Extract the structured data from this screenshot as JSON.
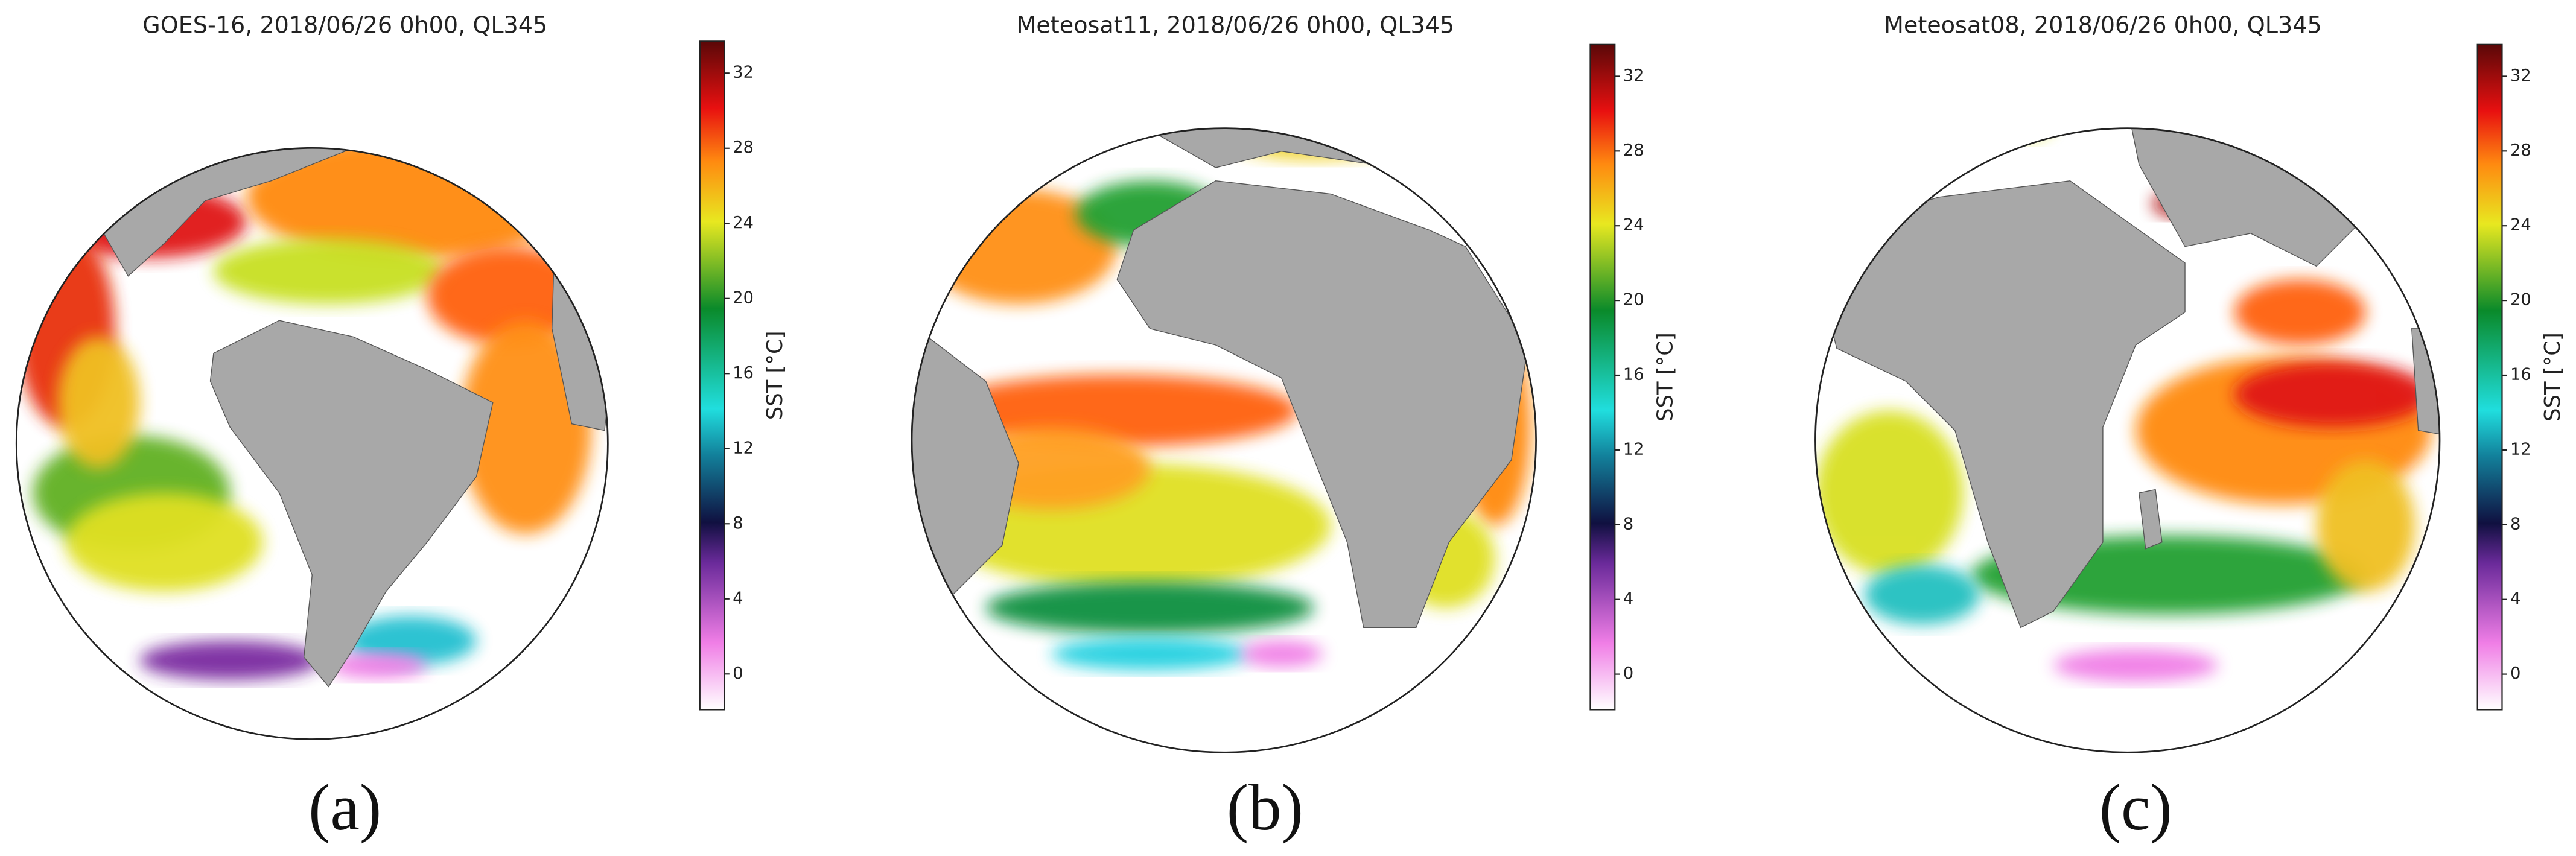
{
  "panels": [
    {
      "title": "GOES-16, 2018/06/26 0h00, QL345",
      "label": "(a)",
      "colorbar": {
        "label": "SST [°C]",
        "lim": [
          -1.9,
          33.7
        ],
        "ticks": [
          0,
          4,
          8,
          12,
          16,
          20,
          24,
          28,
          32
        ]
      }
    },
    {
      "title": "Meteosat11, 2018/06/26 0h00, QL345",
      "label": "(b)",
      "colorbar": {
        "label": "SST [°C]",
        "lim": [
          -1.9,
          33.7
        ],
        "ticks": [
          0,
          4,
          8,
          12,
          16,
          20,
          24,
          28,
          32
        ]
      }
    },
    {
      "title": "Meteosat08, 2018/06/26 0h00, QL345",
      "label": "(c)",
      "colorbar": {
        "label": "SST [°C]",
        "lim": [
          -1.9,
          33.7
        ],
        "ticks": [
          0,
          4,
          8,
          12,
          16,
          20,
          24,
          28,
          32
        ]
      }
    }
  ]
}
